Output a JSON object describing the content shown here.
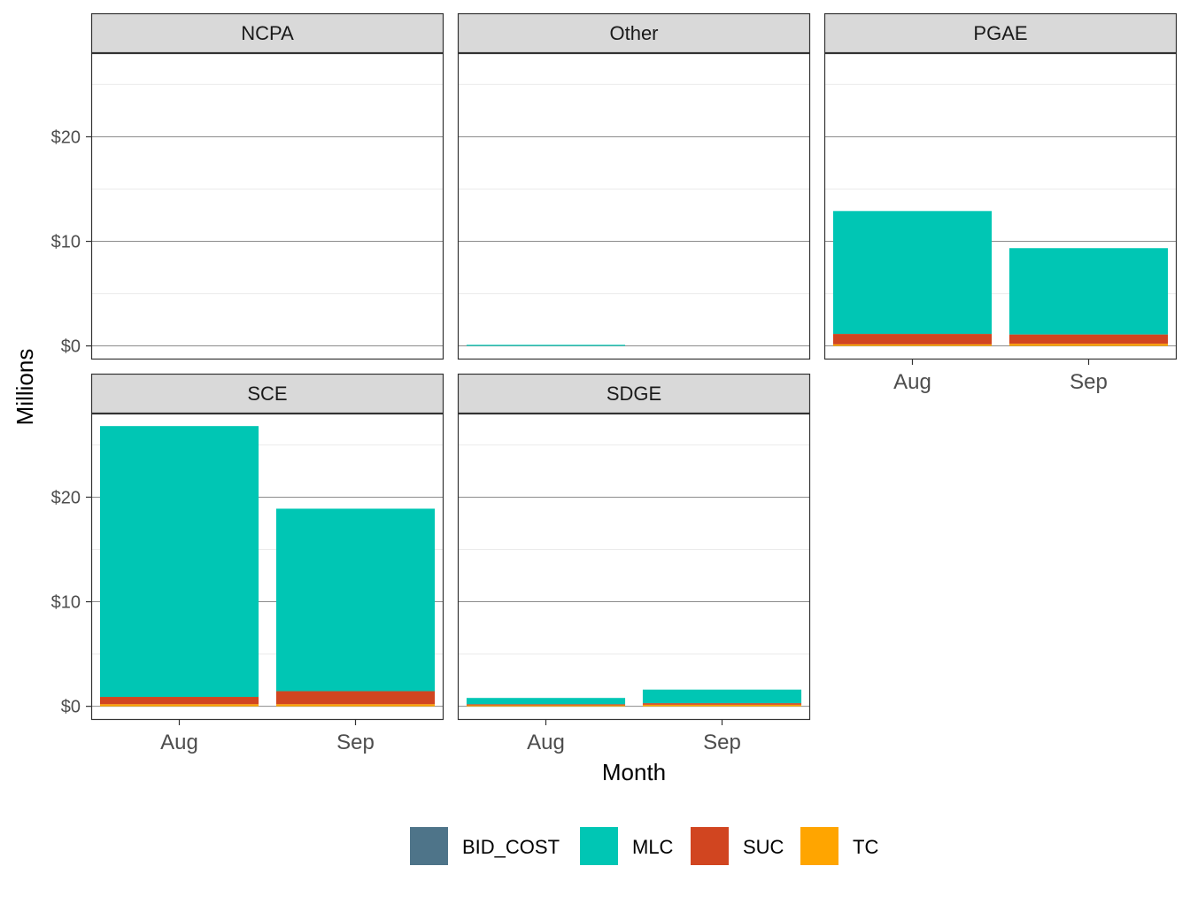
{
  "chart_data": {
    "type": "bar",
    "stacked": true,
    "facet_layout": "wrap 3 columns",
    "xlabel": "Month",
    "ylabel": "Millions",
    "ylim": [
      -1.3,
      28
    ],
    "y_ticks": [
      0,
      10,
      20
    ],
    "y_tick_labels": [
      "$0",
      "$10",
      "$20"
    ],
    "categories": [
      "Aug",
      "Sep"
    ],
    "legend": {
      "position": "bottom",
      "entries": [
        {
          "name": "BID_COST",
          "color": "#4E7489"
        },
        {
          "name": "MLC",
          "color": "#00C6B4"
        },
        {
          "name": "SUC",
          "color": "#D14520"
        },
        {
          "name": "TC",
          "color": "#FFA500"
        }
      ]
    },
    "panels": [
      {
        "title": "NCPA",
        "series": [
          {
            "name": "TC",
            "values": [
              0,
              0
            ]
          },
          {
            "name": "SUC",
            "values": [
              0,
              0
            ]
          },
          {
            "name": "MLC",
            "values": [
              0,
              0
            ]
          },
          {
            "name": "BID_COST",
            "values": [
              0,
              0
            ]
          }
        ]
      },
      {
        "title": "Other",
        "series": [
          {
            "name": "TC",
            "values": [
              0,
              0
            ]
          },
          {
            "name": "SUC",
            "values": [
              0,
              0
            ]
          },
          {
            "name": "MLC",
            "values": [
              0.05,
              0
            ]
          },
          {
            "name": "BID_COST",
            "values": [
              0,
              0
            ]
          }
        ]
      },
      {
        "title": "PGAE",
        "series": [
          {
            "name": "TC",
            "values": [
              0.15,
              0.2
            ]
          },
          {
            "name": "SUC",
            "values": [
              1.0,
              0.9
            ]
          },
          {
            "name": "MLC",
            "values": [
              11.75,
              8.25
            ]
          },
          {
            "name": "BID_COST",
            "values": [
              0,
              0
            ]
          }
        ]
      },
      {
        "title": "SCE",
        "series": [
          {
            "name": "TC",
            "values": [
              0.2,
              0.2
            ]
          },
          {
            "name": "SUC",
            "values": [
              0.7,
              1.25
            ]
          },
          {
            "name": "MLC",
            "values": [
              25.9,
              17.45
            ]
          },
          {
            "name": "BID_COST",
            "values": [
              0,
              0
            ]
          }
        ]
      },
      {
        "title": "SDGE",
        "series": [
          {
            "name": "TC",
            "values": [
              0.1,
              0.15
            ]
          },
          {
            "name": "SUC",
            "values": [
              0.1,
              0.15
            ]
          },
          {
            "name": "MLC",
            "values": [
              0.6,
              1.3
            ]
          },
          {
            "name": "BID_COST",
            "values": [
              0,
              0
            ]
          }
        ]
      }
    ]
  }
}
